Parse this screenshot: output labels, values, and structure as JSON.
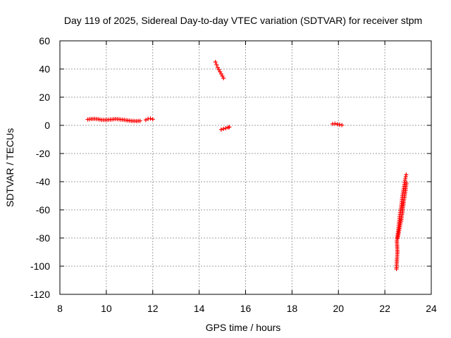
{
  "chart_data": {
    "type": "scatter",
    "title": "Day 119 of 2025, Sidereal Day-to-day VTEC variation (SDTVAR) for receiver stpm",
    "xlabel": "GPS time / hours",
    "ylabel": "SDTVAR / TECUs",
    "xlim": [
      8,
      24
    ],
    "ylim": [
      -120,
      60
    ],
    "xticks": [
      8,
      10,
      12,
      14,
      16,
      18,
      20,
      22,
      24
    ],
    "yticks": [
      -120,
      -100,
      -80,
      -60,
      -40,
      -20,
      0,
      20,
      40,
      60
    ],
    "grid": true,
    "marker": "+",
    "color": "#ff0000",
    "series": [
      {
        "name": "segment-1",
        "points": [
          [
            9.2,
            4.2
          ],
          [
            9.35,
            4.5
          ],
          [
            9.5,
            4.6
          ],
          [
            9.65,
            4.4
          ],
          [
            9.8,
            3.9
          ],
          [
            9.95,
            3.8
          ],
          [
            10.1,
            4.0
          ],
          [
            10.25,
            4.2
          ],
          [
            10.4,
            4.5
          ],
          [
            10.55,
            4.3
          ],
          [
            10.7,
            4.0
          ],
          [
            10.85,
            3.7
          ],
          [
            11.0,
            3.3
          ],
          [
            11.15,
            3.1
          ],
          [
            11.3,
            3.0
          ],
          [
            11.45,
            3.2
          ]
        ]
      },
      {
        "name": "segment-2",
        "points": [
          [
            11.7,
            3.8
          ],
          [
            11.8,
            4.6
          ],
          [
            11.9,
            4.8
          ],
          [
            12.0,
            4.3
          ]
        ]
      },
      {
        "name": "segment-3",
        "points": [
          [
            14.7,
            45.0
          ],
          [
            14.75,
            43.0
          ],
          [
            14.8,
            41.0
          ],
          [
            14.85,
            39.5
          ],
          [
            14.9,
            38.0
          ],
          [
            14.95,
            36.5
          ],
          [
            15.0,
            35.0
          ],
          [
            15.05,
            33.5
          ]
        ]
      },
      {
        "name": "segment-4",
        "points": [
          [
            14.95,
            -3.0
          ],
          [
            15.05,
            -2.5
          ],
          [
            15.15,
            -2.0
          ],
          [
            15.25,
            -1.5
          ],
          [
            15.3,
            -1.2
          ]
        ]
      },
      {
        "name": "segment-5",
        "points": [
          [
            19.75,
            1.0
          ],
          [
            19.85,
            1.2
          ],
          [
            19.95,
            0.8
          ],
          [
            20.05,
            0.5
          ],
          [
            20.15,
            0.2
          ]
        ]
      },
      {
        "name": "segment-6",
        "points": [
          [
            22.5,
            -102
          ],
          [
            22.52,
            -96
          ],
          [
            22.54,
            -90
          ],
          [
            22.52,
            -82
          ],
          [
            22.55,
            -78
          ],
          [
            22.58,
            -74
          ],
          [
            22.6,
            -70
          ],
          [
            22.63,
            -66
          ],
          [
            22.66,
            -62
          ],
          [
            22.7,
            -58
          ],
          [
            22.73,
            -54
          ],
          [
            22.76,
            -50
          ],
          [
            22.8,
            -46
          ],
          [
            22.84,
            -42
          ],
          [
            22.88,
            -38
          ],
          [
            22.92,
            -35
          ]
        ]
      },
      {
        "name": "segment-7",
        "points": [
          [
            22.55,
            -80
          ],
          [
            22.6,
            -76
          ],
          [
            22.65,
            -72
          ],
          [
            22.7,
            -68
          ],
          [
            22.75,
            -62
          ],
          [
            22.8,
            -56
          ],
          [
            22.85,
            -50
          ],
          [
            22.9,
            -45
          ],
          [
            22.93,
            -41
          ]
        ]
      }
    ]
  }
}
